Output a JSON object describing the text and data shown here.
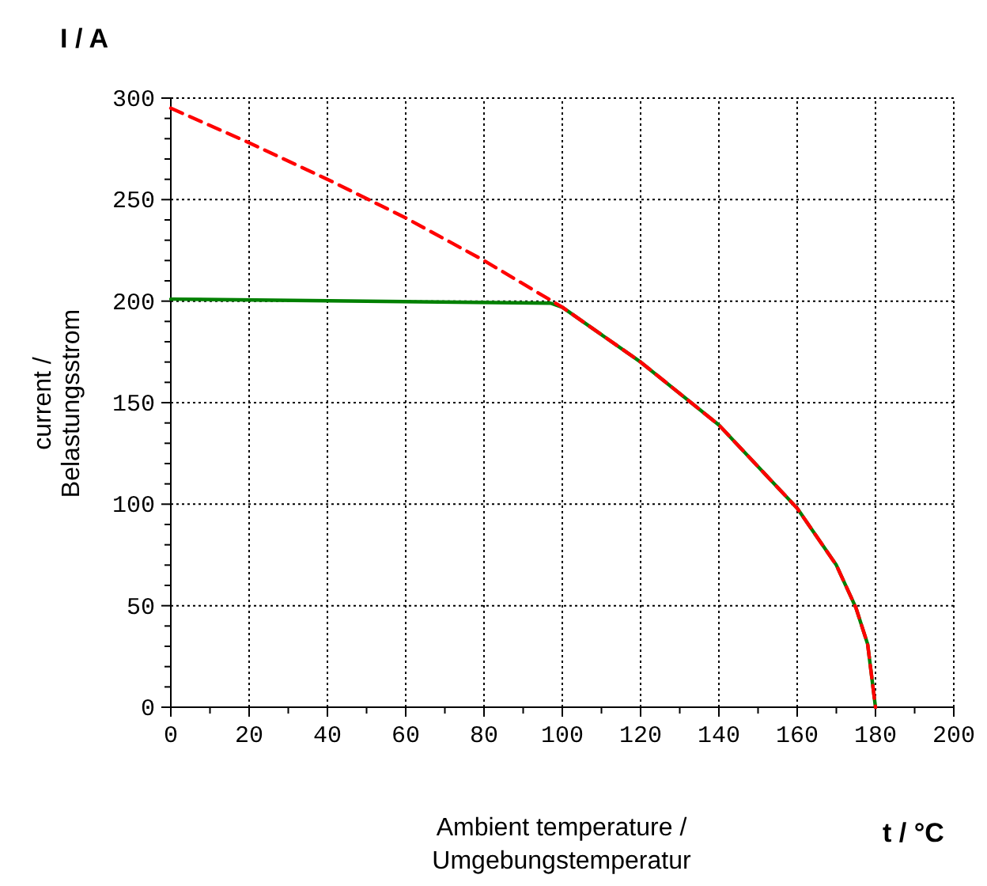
{
  "chart_data": {
    "type": "line",
    "xlabel": "Ambient temperature / Umgebungstemperatur",
    "ylabel": "current / Belastungsstrom",
    "annotations": [
      "I / A",
      "t / °C"
    ],
    "series": [
      {
        "color": "#ff0000",
        "line_style": "dashed",
        "x": [
          0,
          20,
          40,
          60,
          80,
          100,
          120,
          140,
          160,
          170,
          175,
          178,
          180
        ],
        "values": [
          295,
          278,
          260,
          241,
          220,
          197,
          170,
          139,
          98,
          70,
          49,
          31,
          0
        ]
      },
      {
        "color": "#008000",
        "line_style": "solid",
        "x": [
          0,
          97,
          100,
          120,
          140,
          160,
          170,
          175,
          178,
          180
        ],
        "values": [
          201,
          199,
          197,
          170,
          139,
          98,
          70,
          49,
          31,
          0
        ]
      }
    ],
    "xlim": [
      0,
      200
    ],
    "ylim": [
      0,
      300
    ],
    "xticks": [
      0,
      {
        "value": 10,
        "label": null
      },
      20,
      {
        "value": 30,
        "label": null
      },
      40,
      {
        "value": 50,
        "label": null
      },
      60,
      {
        "value": 70,
        "label": null
      },
      80,
      {
        "value": 90,
        "label": null
      },
      100,
      {
        "value": 110,
        "label": null
      },
      120,
      {
        "value": 130,
        "label": null
      },
      140,
      {
        "value": 150,
        "label": null
      },
      160,
      {
        "value": 170,
        "label": null
      },
      180,
      {
        "value": 190,
        "label": null
      },
      200
    ],
    "yticks": [
      0,
      {
        "value": 10,
        "label": null
      },
      {
        "value": 20,
        "label": null
      },
      {
        "value": 30,
        "label": null
      },
      {
        "value": 40,
        "label": null
      },
      50,
      {
        "value": 60,
        "label": null
      },
      {
        "value": 70,
        "label": null
      },
      {
        "value": 80,
        "label": null
      },
      {
        "value": 90,
        "label": null
      },
      100,
      {
        "value": 110,
        "label": null
      },
      {
        "value": 120,
        "label": null
      },
      {
        "value": 130,
        "label": null
      },
      {
        "value": 140,
        "label": null
      },
      150,
      {
        "value": 160,
        "label": null
      },
      {
        "value": 170,
        "label": null
      },
      {
        "value": 180,
        "label": null
      },
      {
        "value": 190,
        "label": null
      },
      200,
      {
        "value": 210,
        "label": null
      },
      {
        "value": 220,
        "label": null
      },
      {
        "value": 230,
        "label": null
      },
      {
        "value": 240,
        "label": null
      },
      250,
      {
        "value": 260,
        "label": null
      },
      {
        "value": 270,
        "label": null
      },
      {
        "value": 280,
        "label": null
      },
      {
        "value": 290,
        "label": null
      },
      300
    ],
    "grid": true,
    "marker": "none"
  }
}
